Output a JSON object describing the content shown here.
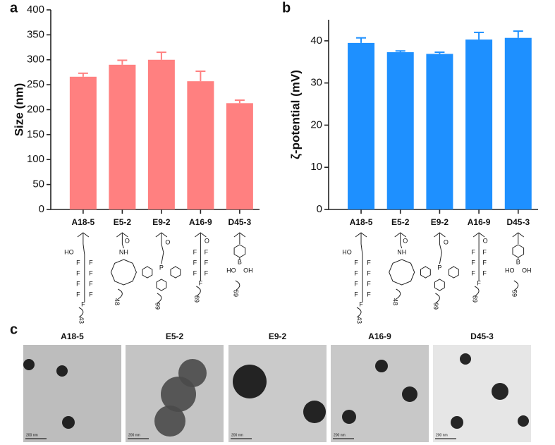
{
  "chart_data": [
    {
      "type": "bar",
      "panel": "a",
      "ylabel": "Size (nm)",
      "categories": [
        "A18-5",
        "E5-2",
        "E9-2",
        "A16-9",
        "D45-3"
      ],
      "values": [
        266,
        290,
        300,
        257,
        213
      ],
      "errors": [
        7,
        9,
        15,
        20,
        6
      ],
      "color": "#ff8080",
      "ylim": [
        0,
        400
      ],
      "yticks": [
        0,
        50,
        100,
        150,
        200,
        250,
        300,
        350,
        400
      ]
    },
    {
      "type": "bar",
      "panel": "b",
      "ylabel": "ζ-potential (mV)",
      "categories": [
        "A18-5",
        "E5-2",
        "E9-2",
        "A16-9",
        "D45-3"
      ],
      "values": [
        39.5,
        37.3,
        36.9,
        40.3,
        40.7
      ],
      "errors": [
        1.2,
        0.3,
        0.4,
        1.7,
        1.6
      ],
      "color": "#1e90ff",
      "ylim": [
        0,
        45
      ],
      "yticks": [
        0,
        10,
        20,
        30,
        40
      ]
    }
  ],
  "structures": [
    {
      "atoms": [
        "HO",
        "F",
        "F",
        "F",
        "F",
        "F",
        "F",
        "F",
        "F",
        "F"
      ],
      "n": "43"
    },
    {
      "atoms": [
        "O",
        "NH"
      ],
      "n": "48"
    },
    {
      "atoms": [
        "O",
        "P"
      ],
      "n": "99"
    },
    {
      "atoms": [
        "O",
        "F",
        "F",
        "F",
        "F",
        "F",
        "F",
        "F"
      ],
      "n": "89"
    },
    {
      "atoms": [
        "B",
        "HO",
        "OH"
      ],
      "n": "59"
    }
  ],
  "panel_c": {
    "label": "c",
    "titles": [
      "A18-5",
      "E5-2",
      "E9-2",
      "A16-9",
      "D45-3"
    ],
    "scale_bar": "200 nm"
  }
}
